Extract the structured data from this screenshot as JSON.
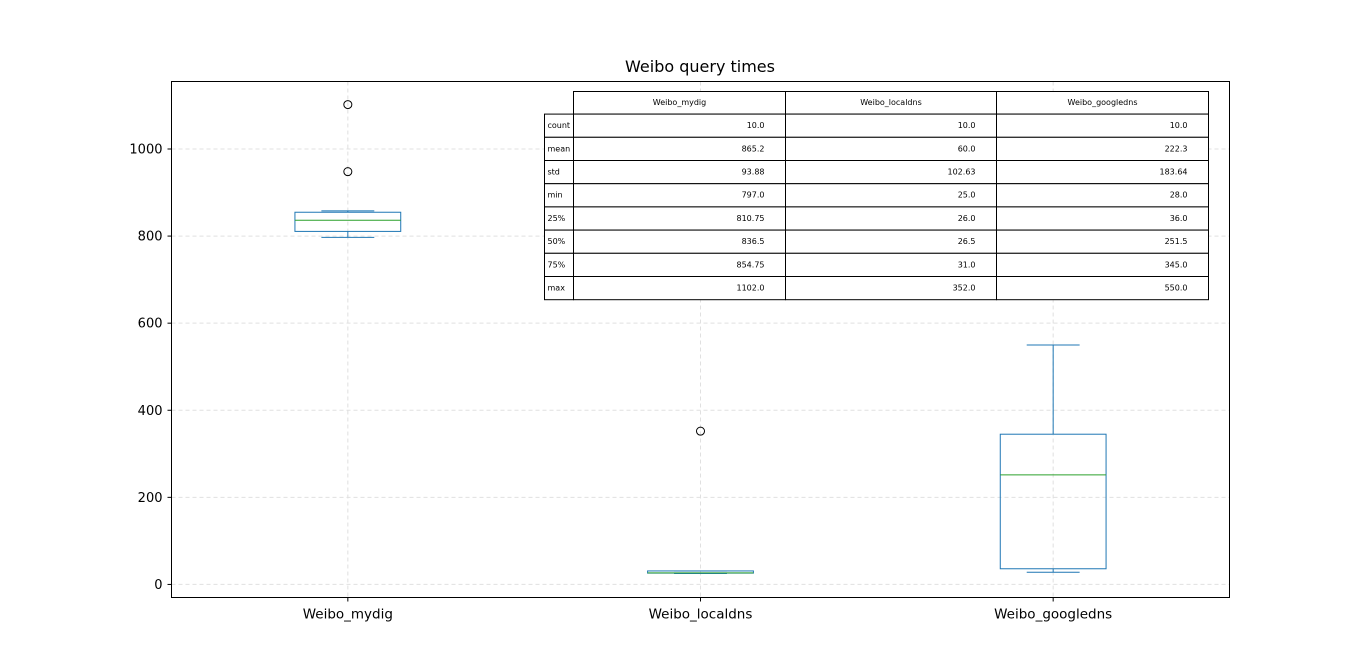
{
  "chart_data": {
    "type": "box",
    "title": "Weibo query times",
    "xlabel": "",
    "ylabel": "",
    "ylim": [
      -30,
      1155
    ],
    "yticks": [
      0,
      200,
      400,
      600,
      800,
      1000
    ],
    "grid": true,
    "categories": [
      "Weibo_mydig",
      "Weibo_localdns",
      "Weibo_googledns"
    ],
    "boxes": [
      {
        "name": "Weibo_mydig",
        "whislo": 797.0,
        "q1": 810.75,
        "med": 836.5,
        "q3": 854.75,
        "whishi": 858.0,
        "fliers": [
          948.0,
          1102.0
        ]
      },
      {
        "name": "Weibo_localdns",
        "whislo": 25.0,
        "q1": 26.0,
        "med": 26.5,
        "q3": 31.0,
        "whishi": 31.0,
        "fliers": [
          352.0
        ]
      },
      {
        "name": "Weibo_googledns",
        "whislo": 28.0,
        "q1": 36.0,
        "med": 251.5,
        "q3": 345.0,
        "whishi": 550.0,
        "fliers": []
      }
    ],
    "colors": {
      "box": "#1f77b4",
      "median": "#2ca02c",
      "grid": "#e0e0e0"
    },
    "table": {
      "columns": [
        "Weibo_mydig",
        "Weibo_localdns",
        "Weibo_googledns"
      ],
      "rows": [
        {
          "label": "count",
          "cells": [
            "10.0",
            "10.0",
            "10.0"
          ]
        },
        {
          "label": "mean",
          "cells": [
            "865.2",
            "60.0",
            "222.3"
          ]
        },
        {
          "label": "std",
          "cells": [
            "93.88",
            "102.63",
            "183.64"
          ]
        },
        {
          "label": "min",
          "cells": [
            "797.0",
            "25.0",
            "28.0"
          ]
        },
        {
          "label": "25%",
          "cells": [
            "810.75",
            "26.0",
            "36.0"
          ]
        },
        {
          "label": "50%",
          "cells": [
            "836.5",
            "26.5",
            "251.5"
          ]
        },
        {
          "label": "75%",
          "cells": [
            "854.75",
            "31.0",
            "345.0"
          ]
        },
        {
          "label": "max",
          "cells": [
            "1102.0",
            "352.0",
            "550.0"
          ]
        }
      ]
    }
  }
}
